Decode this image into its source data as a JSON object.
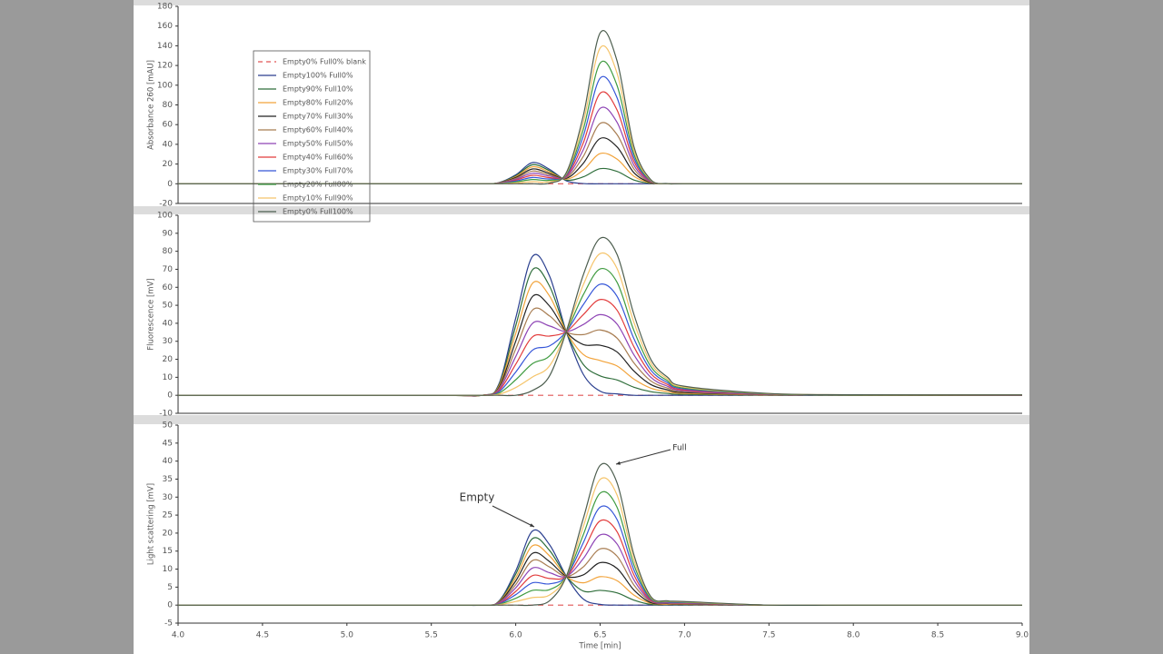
{
  "chart_data": [
    {
      "type": "line",
      "ylabel": "Absorbance 260 [mAU]",
      "xlim": [
        4,
        9
      ],
      "ylim": [
        -20,
        180
      ],
      "yticks": [
        -20,
        0,
        20,
        40,
        60,
        80,
        100,
        120,
        140,
        160,
        180
      ],
      "legend": "upper left",
      "x": [
        4,
        5.5,
        5.8,
        5.9,
        6.0,
        6.1,
        6.2,
        6.3,
        6.4,
        6.5,
        6.6,
        6.7,
        6.8,
        6.9,
        7.0,
        7.5,
        8.0,
        9.0
      ],
      "series": [
        {
          "name": "Empty0% Full0% blank",
          "color": "#e05555",
          "linestyle": "dashed",
          "values": [
            0,
            0,
            0,
            0,
            0,
            0,
            0,
            0,
            0,
            0,
            0,
            0,
            0,
            0,
            0,
            0,
            0,
            0
          ]
        },
        {
          "name": "Empty100% Full0%",
          "color": "#2a3f8f",
          "values": [
            0,
            0,
            0,
            1.1,
            9,
            21.5,
            14.7,
            3,
            0.2,
            0,
            0,
            0,
            0,
            0,
            0,
            0,
            0,
            0
          ]
        },
        {
          "name": "Empty90% Full10%",
          "color": "#2f6e3b",
          "values": [
            0,
            0,
            0,
            1,
            8.1,
            19.3,
            13.3,
            3.8,
            7,
            15.3,
            12.5,
            3.8,
            0.4,
            0,
            0,
            0,
            0,
            0
          ]
        },
        {
          "name": "Empty80% Full20%",
          "color": "#f2a33a",
          "values": [
            0,
            0,
            0,
            0.9,
            7.2,
            17.2,
            11.9,
            4.7,
            13.9,
            30.6,
            25,
            7.6,
            0.8,
            0,
            0,
            0,
            0,
            0
          ]
        },
        {
          "name": "Empty70% Full30%",
          "color": "#222222",
          "values": [
            0,
            0,
            0,
            0.8,
            6.3,
            15,
            10.5,
            5.5,
            20.7,
            45.9,
            37.4,
            11.3,
            1.2,
            0,
            0,
            0,
            0,
            0
          ]
        },
        {
          "name": "Empty60% Full40%",
          "color": "#a87d52",
          "values": [
            0,
            0,
            0,
            0.7,
            5.4,
            12.9,
            9.1,
            6.3,
            27.6,
            61.2,
            49.9,
            15.1,
            1.7,
            0.1,
            0,
            0,
            0,
            0
          ]
        },
        {
          "name": "Empty50% Full50%",
          "color": "#8e44b5",
          "values": [
            0,
            0,
            0,
            0.6,
            4.5,
            10.7,
            7.8,
            7.2,
            34.5,
            76.5,
            62.4,
            18.9,
            2.1,
            0.1,
            0,
            0,
            0,
            0
          ]
        },
        {
          "name": "Empty40% Full60%",
          "color": "#e23c3c",
          "values": [
            0,
            0,
            0,
            0.4,
            3.6,
            8.6,
            6.3,
            8,
            41.4,
            91.8,
            74.9,
            22.7,
            2.5,
            0.1,
            0,
            0,
            0,
            0
          ]
        },
        {
          "name": "Empty30% Full70%",
          "color": "#3556d8",
          "values": [
            0,
            0,
            0,
            0.3,
            2.7,
            6.4,
            4.9,
            8.9,
            48.3,
            107.1,
            87.4,
            26.4,
            2.9,
            0.1,
            0,
            0,
            0,
            0
          ]
        },
        {
          "name": "Empty20% Full80%",
          "color": "#3f9b40",
          "values": [
            0,
            0,
            0,
            0.2,
            1.8,
            4.3,
            3.5,
            9.7,
            55,
            122.4,
            99.8,
            30.2,
            3.3,
            0.1,
            0,
            0,
            0,
            0
          ]
        },
        {
          "name": "Empty10% Full90%",
          "color": "#f5c46a",
          "values": [
            0,
            0,
            0,
            0.1,
            0.9,
            2.1,
            2.1,
            10.5,
            61.9,
            137.7,
            112.3,
            34,
            3.7,
            0.1,
            0,
            0,
            0,
            0
          ]
        },
        {
          "name": "Empty0% Full100%",
          "color": "#4d5e4f",
          "values": [
            0,
            0,
            0,
            0,
            0,
            0,
            0.7,
            11.4,
            68.8,
            153,
            124.8,
            37.8,
            4.2,
            0.2,
            0,
            0,
            0,
            0
          ]
        }
      ]
    },
    {
      "type": "line",
      "ylabel": "Fluorescence [mV]",
      "xlim": [
        4,
        9
      ],
      "ylim": [
        -10,
        100
      ],
      "yticks": [
        -10,
        0,
        10,
        20,
        30,
        40,
        50,
        60,
        70,
        80,
        90,
        100
      ],
      "x": [
        4,
        5.5,
        5.8,
        5.9,
        6.0,
        6.1,
        6.2,
        6.3,
        6.4,
        6.5,
        6.6,
        6.7,
        6.8,
        6.9,
        7.0,
        7.5,
        8.0,
        9.0
      ],
      "series": [
        {
          "color": "#e05555",
          "linestyle": "dashed",
          "values": [
            0,
            0,
            0,
            0,
            0,
            0,
            0,
            0,
            0,
            0,
            0,
            0,
            0,
            0,
            0,
            0,
            0,
            0
          ]
        },
        {
          "color": "#2a3f8f",
          "values": [
            0,
            0,
            0,
            6.2,
            42.9,
            77.2,
            66.3,
            35.1,
            11.7,
            2.3,
            0.8,
            0,
            0,
            0,
            0,
            0,
            0,
            0
          ]
        },
        {
          "color": "#2f6e3b",
          "values": [
            0,
            0,
            0,
            5.6,
            38.6,
            69.8,
            60.7,
            35.2,
            17.2,
            10.8,
            8.5,
            4.5,
            2,
            1,
            0.5,
            0.1,
            0,
            0
          ]
        },
        {
          "color": "#f2a33a",
          "values": [
            0,
            0,
            0,
            5,
            34.3,
            62.3,
            55.2,
            35.2,
            22.7,
            19.3,
            16.3,
            9,
            4,
            2,
            1,
            0.2,
            0.1,
            0
          ]
        },
        {
          "color": "#222222",
          "values": [
            0,
            0,
            0,
            4.3,
            30,
            54.9,
            49.6,
            35.2,
            28.2,
            27.8,
            24.1,
            13.5,
            6,
            3,
            1.5,
            0.3,
            0.1,
            0.1
          ]
        },
        {
          "color": "#a87d52",
          "values": [
            0,
            0,
            0,
            3.7,
            25.7,
            47.4,
            44.1,
            35.3,
            33.7,
            36.3,
            31.8,
            18,
            8,
            4,
            2,
            0.4,
            0.1,
            0.1
          ]
        },
        {
          "color": "#8e44b5",
          "values": [
            0,
            0,
            0,
            3.1,
            21.5,
            40,
            38.5,
            35.4,
            39.3,
            44.8,
            39.6,
            22.5,
            10,
            5,
            2.5,
            0.5,
            0.2,
            0.1
          ]
        },
        {
          "color": "#e23c3c",
          "values": [
            0,
            0,
            0,
            2.5,
            17.2,
            32.5,
            32.9,
            35.4,
            44.8,
            53.2,
            47.3,
            27,
            12,
            6,
            3,
            0.6,
            0.2,
            0.1
          ]
        },
        {
          "color": "#3556d8",
          "values": [
            0,
            0,
            0,
            1.9,
            12.9,
            25.1,
            27.4,
            35.5,
            50.3,
            61.7,
            55,
            31.5,
            14,
            7,
            3.5,
            0.7,
            0.2,
            0.1
          ]
        },
        {
          "color": "#3f9b40",
          "values": [
            0,
            0,
            0,
            1.2,
            8.6,
            17.6,
            21.8,
            35.5,
            55.8,
            70.2,
            62.8,
            36,
            16,
            8,
            4,
            0.8,
            0.2,
            0.2
          ]
        },
        {
          "color": "#f5c46a",
          "values": [
            0,
            0,
            0,
            0.6,
            4.3,
            10.2,
            16.3,
            35.6,
            61.3,
            78.7,
            70.5,
            40.5,
            18,
            9,
            4.5,
            0.9,
            0.3,
            0.2
          ]
        },
        {
          "color": "#4d5e4f",
          "values": [
            0,
            0,
            0,
            0,
            0,
            2.7,
            10.7,
            35.6,
            66.8,
            87.2,
            78.3,
            45,
            20,
            10,
            5,
            1,
            0.3,
            0.2
          ]
        }
      ]
    },
    {
      "type": "line",
      "ylabel": "Light scattering [mV]",
      "xlabel": "Time [min]",
      "xlim": [
        4,
        9
      ],
      "ylim": [
        -5,
        50
      ],
      "yticks": [
        -5,
        0,
        5,
        10,
        15,
        20,
        25,
        30,
        35,
        40,
        45,
        50
      ],
      "xticks": [
        {
          "value": 4,
          "label": "4.0"
        },
        4.5,
        {
          "value": 5,
          "label": "5.0"
        },
        5.5,
        {
          "value": 6,
          "label": "6.0"
        },
        6.5,
        {
          "value": 7,
          "label": "7.0"
        },
        7.5,
        {
          "value": 8,
          "label": "8.0"
        },
        8.5,
        {
          "value": 9,
          "label": "9.0"
        }
      ],
      "annotations": [
        {
          "text": "Empty"
        },
        {
          "text": "Full"
        }
      ],
      "x": [
        4,
        5.5,
        5.8,
        5.9,
        6.0,
        6.1,
        6.2,
        6.3,
        6.4,
        6.5,
        6.6,
        6.7,
        6.8,
        6.9,
        7.0,
        7.5,
        8.0,
        9.0
      ],
      "series": [
        {
          "color": "#e05555",
          "linestyle": "dashed",
          "values": [
            0,
            0,
            0,
            0,
            0,
            0,
            0,
            0,
            0,
            0,
            0,
            0,
            0,
            0,
            0,
            0,
            0,
            0
          ]
        },
        {
          "color": "#2a3f8f",
          "values": [
            0,
            0,
            0,
            1.1,
            9.5,
            20.6,
            16.8,
            8,
            1.7,
            0.2,
            0,
            0,
            0,
            0,
            0,
            0,
            0,
            0
          ]
        },
        {
          "color": "#2f6e3b",
          "values": [
            0,
            0,
            0,
            1,
            8.6,
            18.5,
            15.2,
            8,
            3.9,
            4.1,
            3.4,
            1.4,
            0.2,
            0.1,
            0.1,
            0,
            0,
            0
          ]
        },
        {
          "color": "#f2a33a",
          "values": [
            0,
            0,
            0,
            0.9,
            7.6,
            16.5,
            13.7,
            8,
            6.2,
            7.9,
            6.8,
            2.8,
            0.5,
            0.2,
            0.2,
            0,
            0,
            0
          ]
        },
        {
          "color": "#222222",
          "values": [
            0,
            0,
            0,
            0.8,
            6.7,
            14.4,
            12.1,
            8,
            8.4,
            11.8,
            10.2,
            4.2,
            0.7,
            0.4,
            0.3,
            0,
            0,
            0
          ]
        },
        {
          "color": "#a87d52",
          "values": [
            0,
            0,
            0,
            0.7,
            5.7,
            12.4,
            10.6,
            8,
            10.6,
            15.6,
            13.6,
            5.6,
            1,
            0.5,
            0.4,
            0,
            0,
            0
          ]
        },
        {
          "color": "#8e44b5",
          "values": [
            0,
            0,
            0,
            0.6,
            4.8,
            10.3,
            9,
            8,
            12.9,
            19.5,
            17,
            7,
            1.2,
            0.6,
            0.5,
            0,
            0,
            0
          ]
        },
        {
          "color": "#e23c3c",
          "values": [
            0,
            0,
            0,
            0.4,
            3.8,
            8.2,
            7.4,
            8,
            15.1,
            23.4,
            20.4,
            8.4,
            1.4,
            0.7,
            0.6,
            0,
            0,
            0
          ]
        },
        {
          "color": "#3556d8",
          "values": [
            0,
            0,
            0,
            0.3,
            2.9,
            6.2,
            5.9,
            8,
            17.3,
            27.2,
            23.8,
            9.8,
            1.7,
            0.8,
            0.7,
            0,
            0,
            0
          ]
        },
        {
          "color": "#3f9b40",
          "values": [
            0,
            0,
            0,
            0.2,
            1.9,
            4.1,
            4.3,
            8,
            19.5,
            31.1,
            27.2,
            11.2,
            1.9,
            1,
            0.8,
            0,
            0,
            0
          ]
        },
        {
          "color": "#f5c46a",
          "values": [
            0,
            0,
            0,
            0.1,
            1,
            2.1,
            2.8,
            8,
            21.8,
            34.9,
            30.6,
            12.6,
            2.2,
            1.1,
            0.9,
            0,
            0,
            0
          ]
        },
        {
          "color": "#4d5e4f",
          "values": [
            0,
            0,
            0,
            0,
            0,
            0,
            1.2,
            8,
            24,
            38.8,
            34,
            14,
            2.4,
            1.2,
            1,
            0,
            0,
            0
          ]
        }
      ]
    }
  ]
}
